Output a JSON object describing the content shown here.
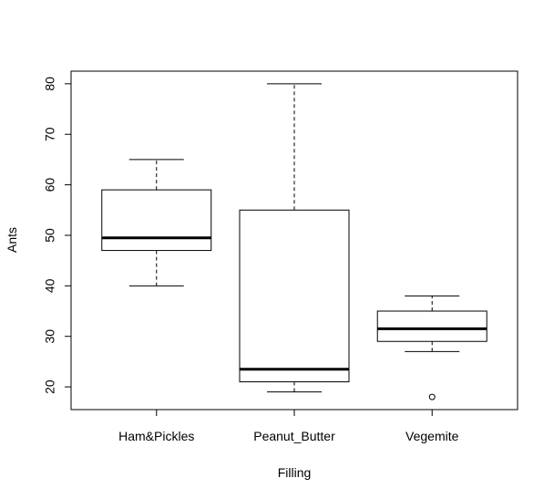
{
  "chart_data": {
    "type": "boxplot",
    "xlabel": "Filling",
    "ylabel": "Ants",
    "ylim": [
      15.5,
      82.5
    ],
    "yticks": [
      20,
      30,
      40,
      50,
      60,
      70,
      80
    ],
    "ytick_labels": [
      "20",
      "30",
      "40",
      "50",
      "60",
      "70",
      "80"
    ],
    "categories": [
      "Ham&Pickles",
      "Peanut_Butter",
      "Vegemite"
    ],
    "boxes": [
      {
        "category": "Ham&Pickles",
        "whisker_low": 40,
        "q1": 47,
        "median": 49.5,
        "q3": 59,
        "whisker_high": 65,
        "outliers": []
      },
      {
        "category": "Peanut_Butter",
        "whisker_low": 19,
        "q1": 21,
        "median": 23.5,
        "q3": 55,
        "whisker_high": 80,
        "outliers": []
      },
      {
        "category": "Vegemite",
        "whisker_low": 27,
        "q1": 29,
        "median": 31.5,
        "q3": 35,
        "whisker_high": 38,
        "outliers": [
          18
        ]
      }
    ],
    "grid": false,
    "legend": "none"
  }
}
